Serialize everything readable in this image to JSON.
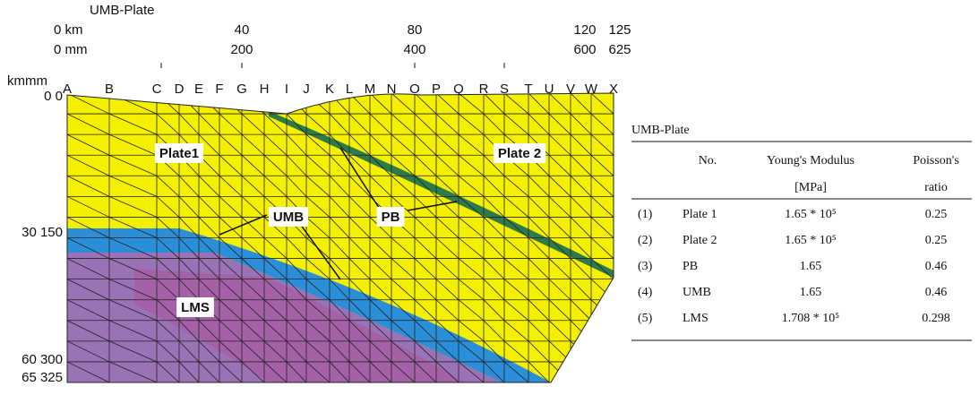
{
  "axes": {
    "title": "UMB-Plate",
    "km_labels": [
      "0 km",
      "40",
      "80",
      "120",
      "125"
    ],
    "mm_labels": [
      "0 mm",
      "200",
      "400",
      "600",
      "625"
    ],
    "corner": "kmmm",
    "depth_labels": [
      "0 0",
      "30 150",
      "60 300",
      "65 325"
    ],
    "columns": [
      "A",
      "B",
      "C",
      "D",
      "E",
      "F",
      "G",
      "H",
      "I",
      "J",
      "K",
      "L",
      "M",
      "N",
      "O",
      "P",
      "Q",
      "R",
      "S",
      "T",
      "U",
      "V",
      "W",
      "X"
    ]
  },
  "regions": {
    "plate1": "Plate1",
    "plate2": "Plate 2",
    "umb": "UMB",
    "pb": "PB",
    "lms": "LMS"
  },
  "table": {
    "title": "UMB-Plate",
    "headers": [
      [
        "No."
      ],
      [
        "Young's Modulus",
        "[MPa]"
      ],
      [
        "Poisson's",
        "ratio"
      ]
    ],
    "rows": [
      [
        "(1)",
        "Plate 1",
        "1.65 * 10⁵",
        "0.25"
      ],
      [
        "(2)",
        "Plate 2",
        "1.65 * 10⁵",
        "0.25"
      ],
      [
        "(3)",
        "PB",
        "1.65",
        "0.46"
      ],
      [
        "(4)",
        "UMB",
        "1.65",
        "0.46"
      ],
      [
        "(5)",
        "LMS",
        "1.708 * 10⁵",
        "0.298"
      ]
    ]
  }
}
